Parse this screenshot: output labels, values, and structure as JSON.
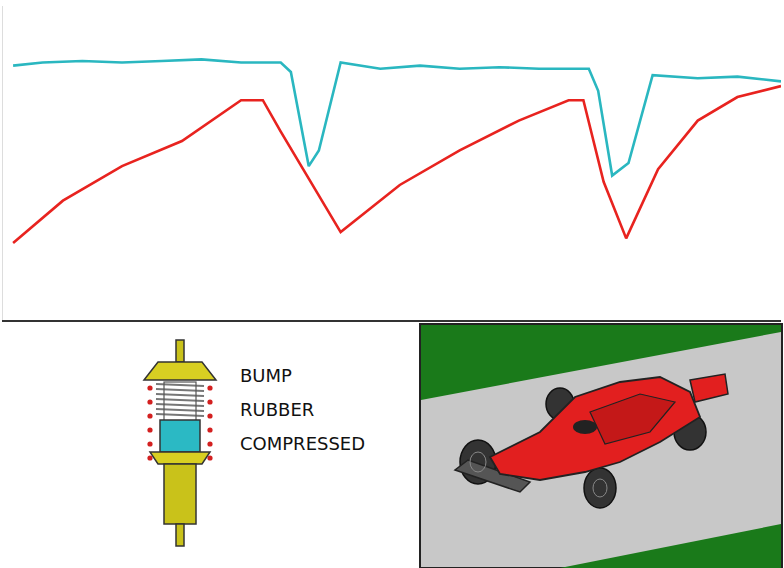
{
  "chart_data": {
    "type": "line",
    "xlim": [
      0,
      100
    ],
    "ylim": [
      0,
      100
    ],
    "tick_labels": false,
    "grid": false,
    "series": [
      {
        "color": "#2ab7c0",
        "x": [
          1.3,
          5.1,
          10.2,
          15.3,
          20.4,
          25.5,
          30.6,
          35.7,
          37,
          39.3,
          40.6,
          43.4,
          48.5,
          53.6,
          58.7,
          63.8,
          68.9,
          75.3,
          76.5,
          78.3,
          80.4,
          83.5,
          89.3,
          94.4,
          100
        ],
        "values": [
          81,
          82,
          82.5,
          82,
          82.5,
          83,
          82,
          82,
          79,
          49,
          54,
          82,
          80,
          81,
          80,
          80.5,
          80,
          80,
          73,
          46,
          50,
          78,
          77,
          77.5,
          76
        ]
      },
      {
        "color": "#e8231f",
        "x": [
          1.3,
          7.7,
          15.3,
          23,
          30.6,
          33.4,
          35.7,
          43.4,
          51,
          58.7,
          66.3,
          72.7,
          74.6,
          77.2,
          80.1,
          84.2,
          89.3,
          94.4,
          100
        ],
        "values": [
          24.5,
          38,
          49,
          57,
          70,
          70,
          60,
          28,
          43,
          54,
          63.5,
          70,
          70,
          44,
          26,
          48,
          63.5,
          71,
          74.5
        ]
      }
    ]
  },
  "illustration": {
    "label": [
      "BUMP",
      "RUBBER",
      "COMPRESSED"
    ]
  }
}
